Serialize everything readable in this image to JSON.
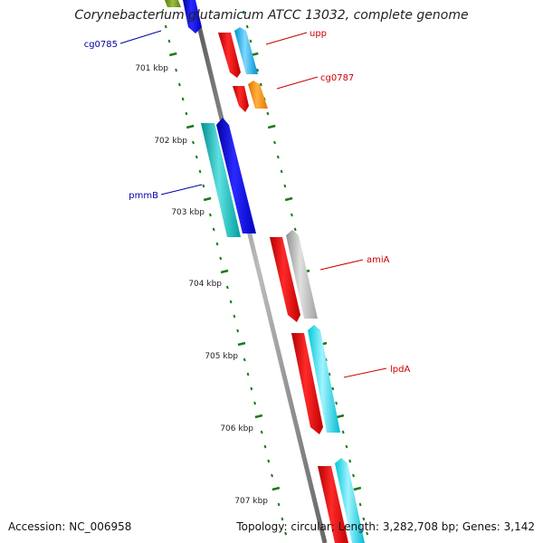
{
  "title": "Corynebacterium glutamicum ATCC 13032, complete genome",
  "accession_text": "Accession: NC_006958",
  "summary_text": "Topology: circular; Length: 3,282,708 bp; Genes: 3,142",
  "colors": {
    "backbone": "#888888",
    "tick": "#1a7a1a",
    "label_right": "#cc0000",
    "label_left": "#0000aa"
  },
  "scale_labels": [
    "701 kbp",
    "702 kbp",
    "703 kbp",
    "704 kbp",
    "705 kbp",
    "706 kbp",
    "707 kbp"
  ],
  "gene_labels": [
    {
      "text": "cg0785",
      "side": "left",
      "color": "#0000aa"
    },
    {
      "text": "upp",
      "side": "right",
      "color": "#cc0000"
    },
    {
      "text": "cg0787",
      "side": "right",
      "color": "#cc0000"
    },
    {
      "text": "pmmB",
      "side": "left",
      "color": "#0000aa"
    },
    {
      "text": "amiA",
      "side": "right",
      "color": "#cc0000"
    },
    {
      "text": "lpdA",
      "side": "right",
      "color": "#cc0000"
    }
  ]
}
